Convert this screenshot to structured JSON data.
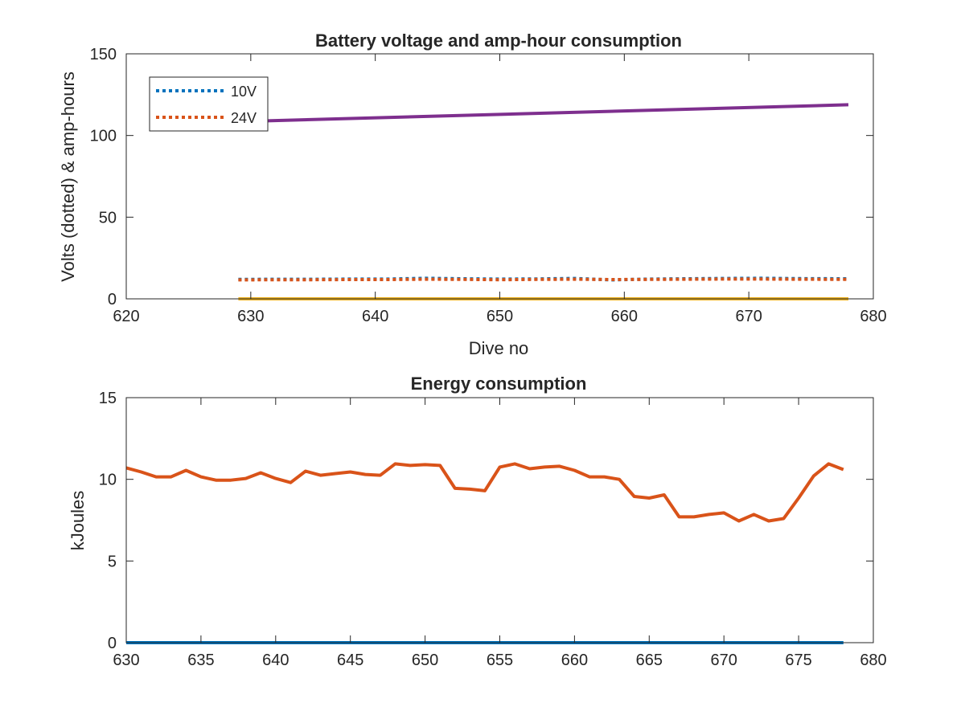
{
  "colors": {
    "blue": "#0072BD",
    "orange": "#D95319",
    "yellow": "#EDB120",
    "purple": "#7E2F8E",
    "axis": "#262626"
  },
  "chart_data": [
    {
      "type": "line",
      "title": "Battery voltage and amp-hour consumption",
      "xlabel": "Dive no",
      "ylabel": "Volts (dotted) & amp-hours",
      "xlim": [
        620,
        680
      ],
      "ylim": [
        0,
        150
      ],
      "xticks": [
        620,
        630,
        640,
        650,
        660,
        670,
        680
      ],
      "yticks": [
        0,
        50,
        100,
        150
      ],
      "grid": false,
      "legend_placement": "top-left",
      "series": [
        {
          "name": "10V",
          "style": "dotted",
          "color": "blue",
          "x": [
            629,
            632,
            635,
            638,
            641,
            644,
            647,
            650,
            653,
            656,
            659,
            662,
            665,
            668,
            671,
            674,
            678
          ],
          "y": [
            11.9,
            12.0,
            12.0,
            12.1,
            12.1,
            12.6,
            12.3,
            12.1,
            12.2,
            12.5,
            11.6,
            12.1,
            12.3,
            12.5,
            12.6,
            12.4,
            12.3
          ]
        },
        {
          "name": "24V",
          "style": "dotted",
          "color": "orange",
          "x": [
            629,
            632,
            635,
            638,
            641,
            644,
            647,
            650,
            653,
            656,
            659,
            662,
            665,
            668,
            671,
            674,
            678
          ],
          "y": [
            11.6,
            11.7,
            11.7,
            11.8,
            11.8,
            12.0,
            11.9,
            11.7,
            11.9,
            12.0,
            11.8,
            11.9,
            12.0,
            12.1,
            12.1,
            12.0,
            11.9
          ]
        },
        {
          "style": "solid",
          "color": "yellow",
          "x": [
            629,
            678
          ],
          "y": [
            0,
            0
          ]
        },
        {
          "style": "solid",
          "color": "purple",
          "x": [
            629,
            678
          ],
          "y": [
            108.5,
            118.8
          ]
        }
      ]
    },
    {
      "type": "line",
      "title": "Energy consumption",
      "xlabel": "",
      "ylabel": "kJoules",
      "xlim": [
        630,
        680
      ],
      "ylim": [
        0,
        15
      ],
      "xticks": [
        630,
        635,
        640,
        645,
        650,
        655,
        660,
        665,
        670,
        675,
        680
      ],
      "yticks": [
        0,
        5,
        10,
        15
      ],
      "grid": false,
      "series": [
        {
          "style": "solid",
          "color": "blue",
          "x": [
            630,
            678
          ],
          "y": [
            0,
            0
          ]
        },
        {
          "style": "solid",
          "color": "orange",
          "x": [
            630,
            631,
            632,
            633,
            634,
            635,
            636,
            637,
            638,
            639,
            640,
            641,
            642,
            643,
            644,
            645,
            646,
            647,
            648,
            649,
            650,
            651,
            652,
            653,
            654,
            655,
            656,
            657,
            658,
            659,
            660,
            661,
            662,
            663,
            664,
            665,
            666,
            667,
            668,
            669,
            670,
            671,
            672,
            673,
            674,
            675,
            676,
            677,
            678
          ],
          "y": [
            10.7,
            10.45,
            10.15,
            10.15,
            10.55,
            10.15,
            9.95,
            9.95,
            10.05,
            10.4,
            10.05,
            9.8,
            10.5,
            10.25,
            10.35,
            10.45,
            10.3,
            10.25,
            10.95,
            10.85,
            10.9,
            10.85,
            9.45,
            9.4,
            9.3,
            10.75,
            10.95,
            10.65,
            10.75,
            10.8,
            10.55,
            10.15,
            10.15,
            10.0,
            8.95,
            8.85,
            9.05,
            7.7,
            7.7,
            7.85,
            7.95,
            7.45,
            7.85,
            7.45,
            7.6,
            8.85,
            10.2,
            10.95,
            10.6
          ]
        }
      ]
    }
  ]
}
